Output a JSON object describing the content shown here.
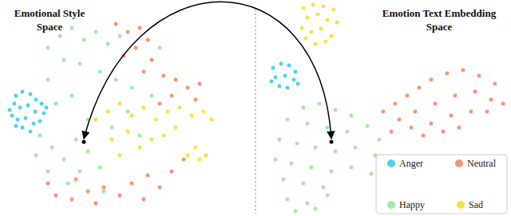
{
  "chart_data": [
    {
      "type": "scatter",
      "title": "Emotional Style\nSpace",
      "xlim": [
        0,
        310
      ],
      "ylim": [
        0,
        271
      ],
      "tick_labels": false,
      "grid": false,
      "marker": "circle",
      "series": [
        {
          "name": "Anger",
          "color": "#22c8e5",
          "values": [
            [
              20,
              151
            ],
            [
              28,
              156
            ],
            [
              38,
              153
            ],
            [
              45,
              146
            ],
            [
              52,
              141
            ],
            [
              18,
              141
            ],
            [
              25,
              136
            ],
            [
              35,
              139
            ],
            [
              44,
              131
            ],
            [
              55,
              129
            ],
            [
              15,
              126
            ],
            [
              22,
              121
            ],
            [
              32,
              123
            ],
            [
              42,
              116
            ],
            [
              50,
              119
            ],
            [
              28,
              111
            ],
            [
              38,
              106
            ],
            [
              20,
              113
            ],
            [
              58,
              136
            ],
            [
              12,
              133
            ]
          ]
        },
        {
          "name": "Neutral",
          "color": "#f47a52",
          "values": [
            [
              145,
              241
            ],
            [
              160,
              231
            ],
            [
              175,
              236
            ],
            [
              185,
              221
            ],
            [
              170,
              211
            ],
            [
              155,
              201
            ],
            [
              190,
              196
            ],
            [
              180,
              181
            ],
            [
              205,
              176
            ],
            [
              220,
              171
            ],
            [
              235,
              161
            ],
            [
              250,
              166
            ],
            [
              215,
              151
            ],
            [
              245,
              146
            ],
            [
              200,
              141
            ],
            [
              70,
              26
            ],
            [
              90,
              21
            ],
            [
              110,
              31
            ],
            [
              130,
              36
            ],
            [
              150,
              26
            ],
            [
              165,
              41
            ],
            [
              185,
              51
            ],
            [
              200,
              36
            ],
            [
              215,
              56
            ],
            [
              230,
              71
            ],
            [
              120,
              16
            ],
            [
              95,
              46
            ],
            [
              60,
              41
            ],
            [
              180,
              21
            ]
          ]
        },
        {
          "name": "Happy",
          "color": "#8be38b",
          "values": [
            [
              60,
              211
            ],
            [
              75,
              226
            ],
            [
              90,
              236
            ],
            [
              105,
              221
            ],
            [
              120,
              231
            ],
            [
              135,
              216
            ],
            [
              150,
              226
            ],
            [
              80,
              196
            ],
            [
              100,
              191
            ],
            [
              125,
              181
            ],
            [
              145,
              171
            ],
            [
              165,
              161
            ],
            [
              60,
              171
            ],
            [
              70,
              141
            ],
            [
              90,
              151
            ],
            [
              50,
              101
            ],
            [
              65,
              86
            ],
            [
              80,
              71
            ],
            [
              95,
              96
            ],
            [
              110,
              81
            ],
            [
              125,
              61
            ],
            [
              60,
              56
            ],
            [
              85,
              41
            ],
            [
              140,
              111
            ],
            [
              160,
              131
            ],
            [
              175,
              101
            ],
            [
              190,
              151
            ],
            [
              200,
              211
            ],
            [
              110,
              121
            ],
            [
              130,
              31
            ],
            [
              45,
              76
            ],
            [
              100,
              56
            ]
          ]
        },
        {
          "name": "Sad",
          "color": "#f9d71c",
          "values": [
            [
              120,
              121
            ],
            [
              135,
              131
            ],
            [
              150,
              141
            ],
            [
              165,
              126
            ],
            [
              180,
              136
            ],
            [
              195,
              121
            ],
            [
              210,
              131
            ],
            [
              225,
              136
            ],
            [
              240,
              126
            ],
            [
              255,
              131
            ],
            [
              140,
              96
            ],
            [
              160,
              106
            ],
            [
              175,
              86
            ],
            [
              190,
              96
            ],
            [
              205,
              101
            ],
            [
              220,
              111
            ],
            [
              150,
              76
            ],
            [
              245,
              86
            ],
            [
              250,
              71
            ],
            [
              258,
              76
            ],
            [
              235,
              76
            ],
            [
              265,
              121
            ]
          ]
        }
      ]
    },
    {
      "type": "scatter",
      "title": "Emotion Text Embedding\nSpace",
      "xlim": [
        0,
        310
      ],
      "ylim": [
        0,
        271
      ],
      "tick_labels": false,
      "grid": false,
      "marker": "circle",
      "legend": "lower right",
      "series": [
        {
          "name": "Anger",
          "color": "#22c8e5",
          "values": [
            [
              12,
              186
            ],
            [
              22,
              191
            ],
            [
              32,
              189
            ],
            [
              40,
              181
            ],
            [
              15,
              174
            ],
            [
              27,
              176
            ],
            [
              38,
              171
            ],
            [
              20,
              163
            ],
            [
              30,
              161
            ],
            [
              10,
              169
            ],
            [
              43,
              166
            ]
          ]
        },
        {
          "name": "Neutral",
          "color": "#f47a52",
          "values": [
            [
              150,
              131
            ],
            [
              165,
              141
            ],
            [
              180,
              151
            ],
            [
              195,
              161
            ],
            [
              210,
              171
            ],
            [
              230,
              179
            ],
            [
              250,
              183
            ],
            [
              270,
              176
            ],
            [
              290,
              166
            ],
            [
              170,
              121
            ],
            [
              190,
              131
            ],
            [
              215,
              141
            ],
            [
              240,
              151
            ],
            [
              265,
              156
            ],
            [
              285,
              146
            ],
            [
              160,
              106
            ],
            [
              185,
              111
            ],
            [
              210,
              116
            ],
            [
              235,
              126
            ],
            [
              260,
              131
            ],
            [
              280,
              131
            ],
            [
              300,
              141
            ],
            [
              200,
              101
            ],
            [
              225,
              106
            ],
            [
              245,
              111
            ]
          ]
        },
        {
          "name": "Happy",
          "color": "#8be38b",
          "values": [
            [
              50,
              136
            ],
            [
              70,
              141
            ],
            [
              90,
              133
            ],
            [
              110,
              126
            ],
            [
              30,
              121
            ],
            [
              55,
              116
            ],
            [
              80,
              111
            ],
            [
              105,
              106
            ],
            [
              130,
              113
            ],
            [
              145,
              96
            ],
            [
              20,
              96
            ],
            [
              42,
              91
            ],
            [
              65,
              86
            ],
            [
              90,
              81
            ],
            [
              115,
              86
            ],
            [
              140,
              76
            ],
            [
              160,
              71
            ],
            [
              15,
              71
            ],
            [
              35,
              66
            ],
            [
              60,
              61
            ],
            [
              85,
              56
            ],
            [
              110,
              61
            ],
            [
              135,
              53
            ],
            [
              25,
              46
            ],
            [
              50,
              41
            ],
            [
              75,
              36
            ],
            [
              30,
              21
            ],
            [
              55,
              16
            ],
            [
              80,
              26
            ],
            [
              40,
              6
            ],
            [
              65,
              9
            ]
          ]
        },
        {
          "name": "Sad",
          "color": "#f9d71c",
          "values": [
            [
              50,
              261
            ],
            [
              62,
              265
            ],
            [
              75,
              263
            ],
            [
              88,
              259
            ],
            [
              55,
              249
            ],
            [
              68,
              253
            ],
            [
              80,
              246
            ],
            [
              92,
              243
            ],
            [
              48,
              236
            ],
            [
              60,
              231
            ],
            [
              72,
              235
            ],
            [
              85,
              226
            ],
            [
              65,
              216
            ],
            [
              78,
              219
            ],
            [
              53,
              223
            ]
          ]
        }
      ]
    }
  ]
}
